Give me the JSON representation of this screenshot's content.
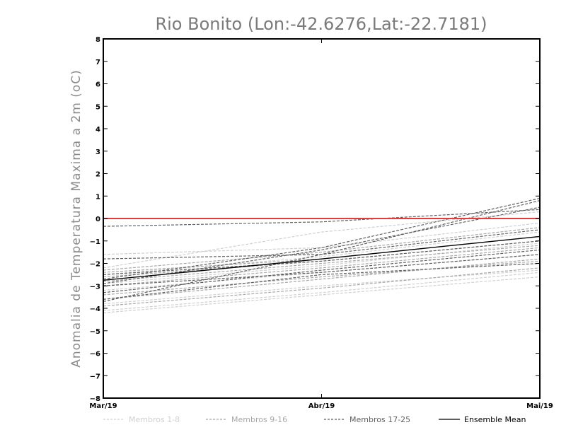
{
  "chart_data": {
    "type": "line",
    "title": "Rio Bonito (Lon:-42.6276,Lat:-22.7181)",
    "xlabel": "",
    "ylabel": "Anomalia de Temperatura Maxima a 2m (oC)",
    "categories": [
      "Mar/19",
      "Abr/19",
      "Mai/19"
    ],
    "ylim": [
      -8,
      8
    ],
    "yticks": [
      "8",
      "7",
      "6",
      "5",
      "4",
      "3",
      "2",
      "1",
      "0",
      "−1",
      "−2",
      "−3",
      "−4",
      "−5",
      "−6",
      "−7",
      "−8"
    ],
    "grid": false,
    "legend_position": "bottom",
    "legend": [
      {
        "label": "Membros 1-8",
        "color": "#d0d0d0",
        "style": "dashed"
      },
      {
        "label": "Membros 9-16",
        "color": "#a8a8a8",
        "style": "dashed"
      },
      {
        "label": "Membros 17-25",
        "color": "#606060",
        "style": "dashed"
      },
      {
        "label": "Ensemble Mean",
        "color": "#000000",
        "style": "solid"
      }
    ],
    "reference_line": {
      "y": 0,
      "color": "#e83a3a"
    },
    "groups": [
      {
        "color": "#d0d0d0",
        "series": [
          {
            "values": [
              -1.6,
              -1.3,
              -0.2
            ]
          },
          {
            "values": [
              -2.5,
              -1.7,
              -0.6
            ]
          },
          {
            "values": [
              -3.8,
              -3.0,
              -2.3
            ]
          },
          {
            "values": [
              -4.1,
              -3.3,
              -2.4
            ]
          },
          {
            "values": [
              -2.9,
              -2.1,
              -1.1
            ]
          },
          {
            "values": [
              -3.2,
              -2.4,
              -1.6
            ]
          },
          {
            "values": [
              -2.2,
              -0.6,
              0.3
            ]
          },
          {
            "values": [
              -4.2,
              -3.4,
              -2.6
            ]
          }
        ]
      },
      {
        "color": "#a8a8a8",
        "series": [
          {
            "values": [
              -2.6,
              -1.9,
              -1.0
            ]
          },
          {
            "values": [
              -3.6,
              -2.7,
              -1.8
            ]
          },
          {
            "values": [
              -3.0,
              -2.2,
              -1.3
            ]
          },
          {
            "values": [
              -2.3,
              -1.5,
              -0.4
            ]
          },
          {
            "values": [
              -3.4,
              -2.6,
              -1.9
            ]
          },
          {
            "values": [
              -2.8,
              -2.0,
              -1.2
            ]
          },
          {
            "values": [
              -3.9,
              -3.1,
              -2.2
            ]
          },
          {
            "values": [
              -2.4,
              -1.8,
              -0.8
            ]
          }
        ]
      },
      {
        "color": "#606060",
        "series": [
          {
            "values": [
              -0.35,
              -0.15,
              0.4
            ]
          },
          {
            "values": [
              -2.7,
              -1.3,
              0.9
            ]
          },
          {
            "values": [
              -3.7,
              -1.6,
              0.8
            ]
          },
          {
            "values": [
              -1.8,
              -1.6,
              -0.5
            ]
          },
          {
            "values": [
              -2.9,
              -1.4,
              0.5
            ]
          },
          {
            "values": [
              -3.3,
              -2.3,
              -1.4
            ]
          },
          {
            "values": [
              -3.0,
              -2.4,
              -1.6
            ]
          },
          {
            "values": [
              -3.6,
              -2.5,
              -2.0
            ]
          },
          {
            "values": [
              -2.5,
              -1.9,
              -1.0
            ]
          }
        ]
      }
    ],
    "ensemble_mean": {
      "name": "Ensemble Mean",
      "values": [
        -2.75,
        -1.8,
        -0.8
      ],
      "color": "#000000"
    }
  }
}
